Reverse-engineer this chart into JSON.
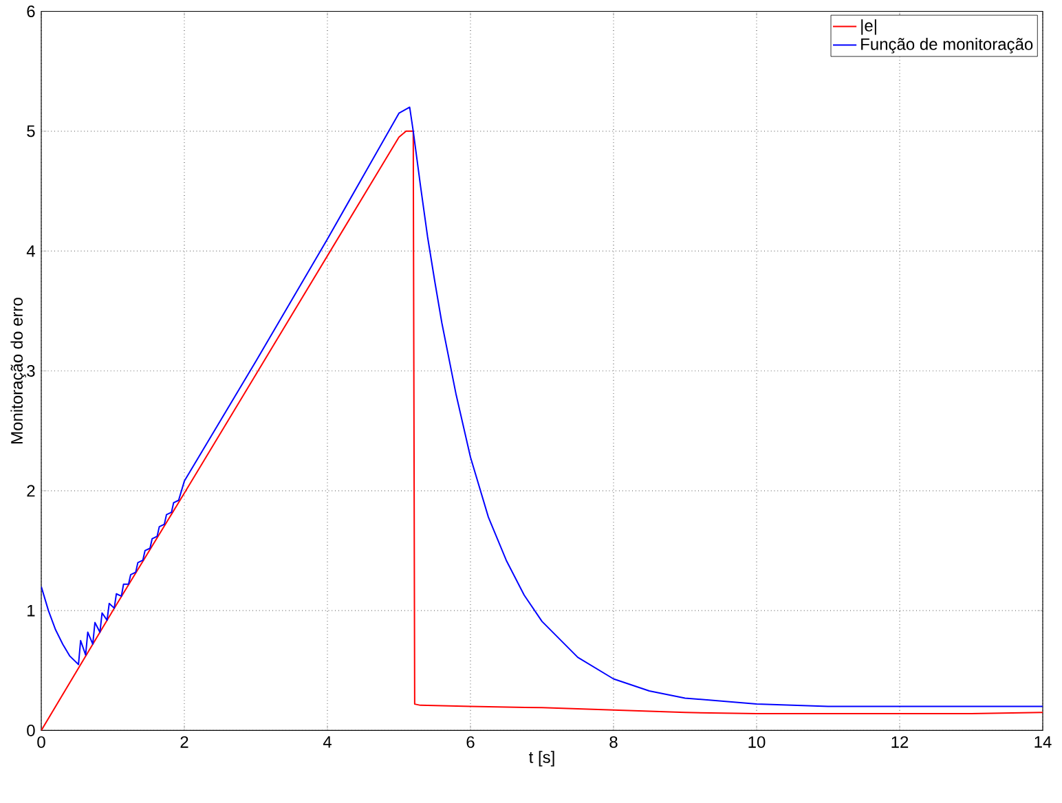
{
  "chart_data": {
    "type": "line",
    "xlabel": "t [s]",
    "ylabel": "Monitoração do erro",
    "xlim": [
      0,
      14
    ],
    "ylim": [
      0,
      6
    ],
    "xticks": [
      0,
      2,
      4,
      6,
      8,
      10,
      12,
      14
    ],
    "yticks": [
      0,
      1,
      2,
      3,
      4,
      5,
      6
    ],
    "grid": true,
    "legend": "top right",
    "marker": "none",
    "line_style": "solid",
    "series": [
      {
        "name": "|e|",
        "color": "#ff0000",
        "x": [
          0,
          1,
          2,
          3,
          4,
          5.0,
          5.1,
          5.2,
          5.22,
          5.3,
          6,
          7,
          8,
          9,
          10,
          11,
          12,
          13,
          14
        ],
        "values": [
          0,
          1.0,
          1.98,
          2.97,
          3.96,
          4.95,
          5.0,
          5.0,
          0.22,
          0.21,
          0.2,
          0.19,
          0.17,
          0.15,
          0.14,
          0.14,
          0.14,
          0.14,
          0.15
        ]
      },
      {
        "name": "Função de monitoração",
        "color": "#0000ff",
        "x": [
          0,
          0.1,
          0.2,
          0.3,
          0.4,
          0.52,
          0.55,
          0.62,
          0.65,
          0.72,
          0.75,
          0.82,
          0.85,
          0.92,
          0.95,
          1.02,
          1.05,
          1.12,
          1.15,
          1.22,
          1.25,
          1.32,
          1.35,
          1.42,
          1.45,
          1.52,
          1.55,
          1.62,
          1.65,
          1.72,
          1.75,
          1.82,
          1.85,
          1.92,
          2.0,
          3.0,
          4.0,
          5.0,
          5.15,
          5.2,
          5.3,
          5.4,
          5.5,
          5.6,
          5.8,
          6.0,
          6.25,
          6.5,
          6.75,
          7.0,
          7.5,
          8.0,
          8.5,
          9.0,
          10,
          11,
          12,
          13,
          14
        ],
        "values": [
          1.2,
          1.0,
          0.84,
          0.72,
          0.62,
          0.55,
          0.75,
          0.63,
          0.82,
          0.72,
          0.9,
          0.82,
          0.98,
          0.92,
          1.06,
          1.02,
          1.14,
          1.12,
          1.22,
          1.22,
          1.3,
          1.32,
          1.4,
          1.42,
          1.5,
          1.52,
          1.6,
          1.62,
          1.7,
          1.72,
          1.8,
          1.82,
          1.9,
          1.92,
          2.08,
          3.08,
          4.1,
          5.15,
          5.2,
          5.0,
          4.55,
          4.12,
          3.75,
          3.4,
          2.8,
          2.28,
          1.78,
          1.42,
          1.13,
          0.91,
          0.61,
          0.43,
          0.33,
          0.27,
          0.22,
          0.2,
          0.2,
          0.2,
          0.2
        ]
      }
    ]
  }
}
